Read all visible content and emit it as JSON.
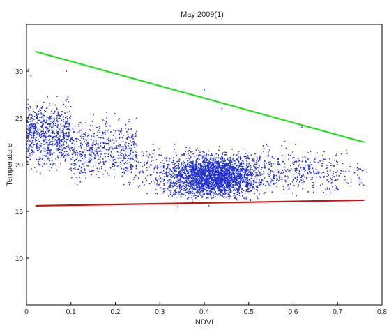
{
  "chart_data": {
    "type": "scatter",
    "title": "May 2009(1)",
    "xlabel": "NDVI",
    "ylabel": "Temperature",
    "xlim": [
      0,
      0.8
    ],
    "ylim": [
      5,
      35
    ],
    "x_ticks": [
      0,
      0.1,
      0.2,
      0.3,
      0.4,
      0.5,
      0.6,
      0.7,
      0.8
    ],
    "x_tick_labels": [
      "0",
      "0.1",
      "0.2",
      "0.3",
      "0.4",
      "0.5",
      "0.6",
      "0.7",
      "0.8"
    ],
    "y_ticks": [
      10,
      15,
      20,
      25,
      30
    ],
    "y_tick_labels": [
      "10",
      "15",
      "20",
      "25",
      "30"
    ],
    "grid": false,
    "legend": "none",
    "series": [
      {
        "kind": "points",
        "color": "#1f2fd0",
        "point_clusters": [
          {
            "x_range": [
              0.0,
              0.1
            ],
            "y_range": [
              18.5,
              28.0
            ],
            "density": "high"
          },
          {
            "x_range": [
              0.1,
              0.25
            ],
            "y_range": [
              17.0,
              26.0
            ],
            "density": "medium"
          },
          {
            "x_range": [
              0.27,
              0.57
            ],
            "y_range": [
              16.0,
              22.0
            ],
            "density": "very high"
          },
          {
            "x_range": [
              0.25,
              0.7
            ],
            "y_range": [
              15.6,
              23.0
            ],
            "density": "medium"
          },
          {
            "x_range": [
              0.55,
              0.76
            ],
            "y_range": [
              16.5,
              21.5
            ],
            "density": "low"
          }
        ],
        "sample_points": [
          [
            0.005,
            30.2
          ],
          [
            0.01,
            29.5
          ],
          [
            0.09,
            30.0
          ],
          [
            0.4,
            28.0
          ],
          [
            0.44,
            26.0
          ],
          [
            0.62,
            24.0
          ],
          [
            0.72,
            21.5
          ],
          [
            0.765,
            19.2
          ],
          [
            0.34,
            15.5
          ],
          [
            0.41,
            15.6
          ]
        ]
      },
      {
        "kind": "line",
        "color": "#22dd22",
        "x": [
          0.02,
          0.76
        ],
        "y": [
          32.1,
          22.4
        ]
      },
      {
        "kind": "line",
        "color": "#cc1111",
        "x": [
          0.02,
          0.76
        ],
        "y": [
          15.6,
          16.2
        ]
      }
    ]
  }
}
